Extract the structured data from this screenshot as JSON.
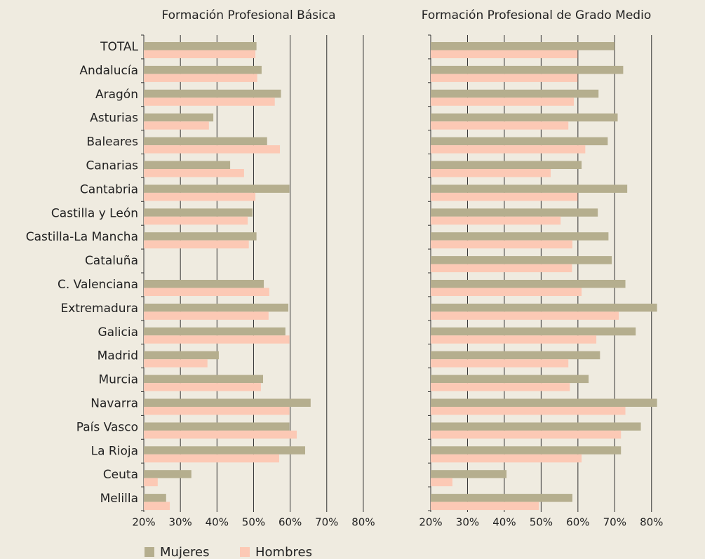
{
  "chart_data": [
    {
      "type": "bar",
      "orientation": "horizontal",
      "title": "Formación Profesional Básica",
      "categories": [
        "TOTAL",
        "Andalucía",
        "Aragón",
        "Asturias",
        "Baleares",
        "Canarias",
        "Cantabria",
        "Castilla y León",
        "Castilla-La Mancha",
        "Cataluña",
        "C. Valenciana",
        "Extremadura",
        "Galicia",
        "Madrid",
        "Murcia",
        "Navarra",
        "País Vasco",
        "La Rioja",
        "Ceuta",
        "Melilla"
      ],
      "series": [
        {
          "name": "Mujeres",
          "color": "#b5ae8e",
          "values": [
            50.8,
            52.2,
            57.5,
            39,
            53.7,
            43.6,
            59.8,
            49.7,
            50.8,
            null,
            52.8,
            59.5,
            58.7,
            40.5,
            52.6,
            65.6,
            59.8,
            64.1,
            33,
            26.1
          ]
        },
        {
          "name": "Hombres",
          "color": "#fcc9b5",
          "values": [
            50.5,
            51,
            55.8,
            37.8,
            57.2,
            47.4,
            50.5,
            48.4,
            48.7,
            null,
            54.3,
            54.1,
            59.8,
            37.4,
            52,
            59.8,
            61.8,
            57,
            23.8,
            27.1
          ]
        }
      ],
      "xlim": [
        20,
        85
      ],
      "xticks": [
        {
          "value": 20,
          "label": "20%"
        },
        {
          "value": 30,
          "label": "30%"
        },
        {
          "value": 40,
          "label": "40%"
        },
        {
          "value": 50,
          "label": "50%"
        },
        {
          "value": 60,
          "label": "60%"
        },
        {
          "value": 70,
          "label": "70%"
        },
        {
          "value": 80,
          "label": "80%"
        }
      ],
      "grid": true
    },
    {
      "type": "bar",
      "orientation": "horizontal",
      "title": "Formación Profesional de Grado Medio",
      "series": [
        {
          "color": "#b5ae8e",
          "values": [
            70,
            72.3,
            65.6,
            70.8,
            68.1,
            61,
            73.4,
            65.4,
            68.3,
            69.2,
            72.9,
            81.5,
            75.7,
            66,
            62.9,
            81.5,
            77.1,
            71.7,
            40.6,
            58.5
          ]
        },
        {
          "color": "#fcc9b5",
          "values": [
            59.9,
            59.9,
            58.9,
            57.4,
            62,
            52.6,
            59.9,
            55.3,
            58.5,
            58.4,
            61,
            71.1,
            65,
            57.4,
            57.8,
            72.9,
            71.7,
            61,
            25.9,
            49.4
          ]
        }
      ],
      "xlim": [
        20,
        85
      ],
      "xticks": [
        {
          "value": 20,
          "label": "20%"
        },
        {
          "value": 30,
          "label": "30%"
        },
        {
          "value": 40,
          "label": "40%"
        },
        {
          "value": 50,
          "label": "50%"
        },
        {
          "value": 60,
          "label": "60%"
        },
        {
          "value": 70,
          "label": "70%"
        },
        {
          "value": 80,
          "label": "80%"
        }
      ],
      "grid": true
    }
  ]
}
